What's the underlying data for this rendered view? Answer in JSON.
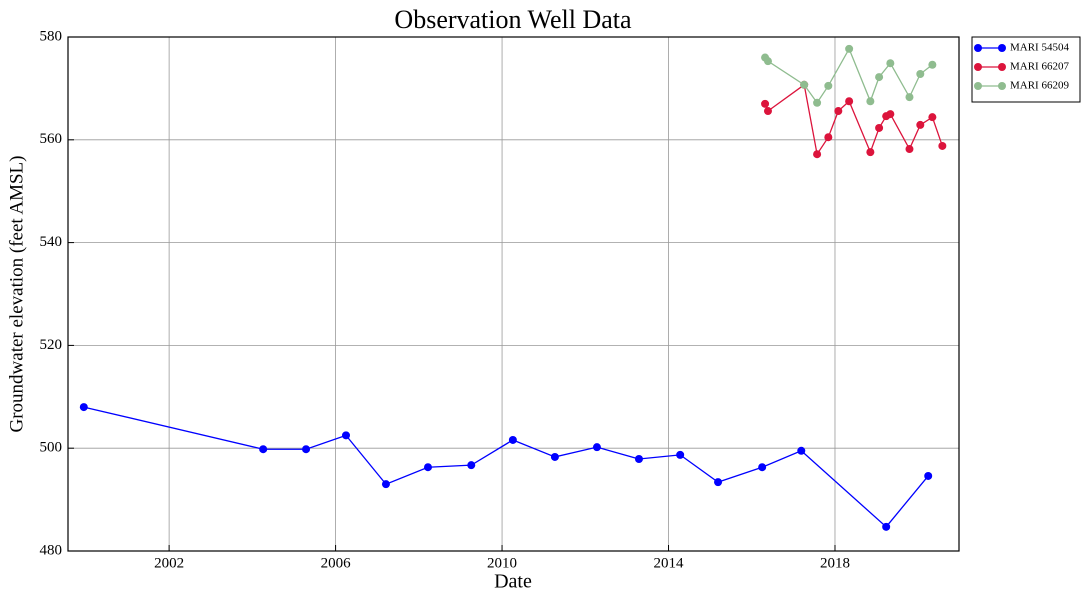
{
  "chart_data": {
    "type": "line",
    "title": "Observation Well Data",
    "x_label": "Date",
    "y_label": "Groundwater elevation (feet AMSL)",
    "xlim": [
      1999.57,
      2020.98
    ],
    "xticks": [
      2002,
      2006,
      2010,
      2014,
      2018
    ],
    "ylim": [
      480,
      580
    ],
    "yticks": [
      480,
      500,
      520,
      540,
      560,
      580
    ],
    "grid": true,
    "legend": "outside-right",
    "series": [
      {
        "name": "MARI 54504",
        "color": "#0000ff",
        "x": [
          1999.95,
          2004.26,
          2005.29,
          2006.25,
          2007.21,
          2008.22,
          2009.26,
          2010.26,
          2011.27,
          2012.28,
          2013.29,
          2014.28,
          2015.19,
          2016.25,
          2017.19,
          2019.23,
          2020.24
        ],
        "values": [
          508.0,
          499.8,
          499.8,
          502.5,
          493.0,
          496.3,
          496.7,
          501.6,
          498.3,
          500.2,
          497.9,
          498.7,
          493.4,
          496.3,
          499.5,
          484.7,
          494.6
        ]
      },
      {
        "name": "MARI 66207",
        "color": "#dc143c",
        "x": [
          2016.32,
          2016.39,
          2017.26,
          2017.57,
          2017.84,
          2018.08,
          2018.34,
          2018.85,
          2019.06,
          2019.23,
          2019.33,
          2019.79,
          2020.05,
          2020.34,
          2020.58
        ],
        "values": [
          567.0,
          565.6,
          570.7,
          557.2,
          560.5,
          565.6,
          567.5,
          557.6,
          562.3,
          564.6,
          565.0,
          558.2,
          562.9,
          564.4,
          558.8
        ]
      },
      {
        "name": "MARI 66209",
        "color": "#8fbc8f",
        "x": [
          2016.32,
          2016.39,
          2017.26,
          2017.57,
          2017.84,
          2018.34,
          2018.85,
          2019.06,
          2019.33,
          2019.79,
          2020.05,
          2020.34
        ],
        "values": [
          576.0,
          575.3,
          570.7,
          567.2,
          570.5,
          577.7,
          567.5,
          572.2,
          574.9,
          568.3,
          572.8,
          574.6
        ]
      }
    ]
  }
}
